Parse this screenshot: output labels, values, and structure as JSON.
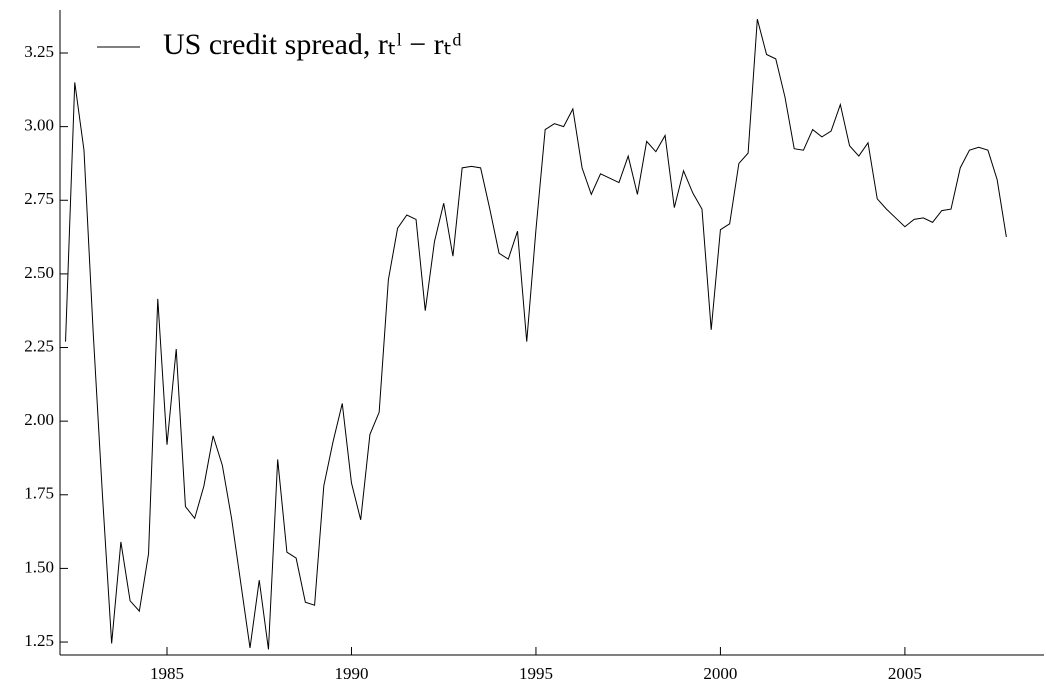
{
  "chart_data": {
    "type": "line",
    "x": [
      1982.25,
      1982.5,
      1982.75,
      1983,
      1983.25,
      1983.5,
      1983.75,
      1984,
      1984.25,
      1984.5,
      1984.75,
      1985,
      1985.25,
      1985.5,
      1985.75,
      1986,
      1986.25,
      1986.5,
      1986.75,
      1987,
      1987.25,
      1987.5,
      1987.75,
      1988,
      1988.25,
      1988.5,
      1988.75,
      1989,
      1989.25,
      1989.5,
      1989.75,
      1990,
      1990.25,
      1990.5,
      1990.75,
      1991,
      1991.25,
      1991.5,
      1991.75,
      1992,
      1992.25,
      1992.5,
      1992.75,
      1993,
      1993.25,
      1993.5,
      1993.75,
      1994,
      1994.25,
      1994.5,
      1994.75,
      1995,
      1995.25,
      1995.5,
      1995.75,
      1996,
      1996.25,
      1996.5,
      1996.75,
      1997,
      1997.25,
      1997.5,
      1997.75,
      1998,
      1998.25,
      1998.5,
      1998.75,
      1999,
      1999.25,
      1999.5,
      1999.75,
      2000,
      2000.25,
      2000.5,
      2000.75,
      2001,
      2001.25,
      2001.5,
      2001.75,
      2002,
      2002.25,
      2002.5,
      2002.75,
      2003,
      2003.25,
      2003.5,
      2003.75,
      2004,
      2004.25,
      2004.5,
      2004.75,
      2005,
      2005.25,
      2005.5,
      2005.75,
      2006,
      2006.25,
      2006.5,
      2006.75,
      2007,
      2007.25,
      2007.5,
      2007.75
    ],
    "series": [
      {
        "name": "US credit spread, rₜˡ − rₜᵈ",
        "color": "#000000",
        "values": [
          2.27,
          3.15,
          2.92,
          2.3,
          1.75,
          1.245,
          1.59,
          1.39,
          1.355,
          1.55,
          2.415,
          1.92,
          2.245,
          1.71,
          1.67,
          1.78,
          1.95,
          1.85,
          1.67,
          1.45,
          1.23,
          1.46,
          1.225,
          1.87,
          1.555,
          1.535,
          1.385,
          1.375,
          1.78,
          1.93,
          2.06,
          1.79,
          1.665,
          1.955,
          2.03,
          2.48,
          2.655,
          2.7,
          2.685,
          2.375,
          2.61,
          2.74,
          2.56,
          2.86,
          2.865,
          2.86,
          2.72,
          2.57,
          2.55,
          2.645,
          2.27,
          2.65,
          2.99,
          3.01,
          3.0,
          3.06,
          2.86,
          2.77,
          2.84,
          2.825,
          2.81,
          2.9,
          2.77,
          2.95,
          2.915,
          2.97,
          2.725,
          2.85,
          2.775,
          2.72,
          2.31,
          2.65,
          2.67,
          2.875,
          2.91,
          3.365,
          3.245,
          3.23,
          3.1,
          2.925,
          2.92,
          2.99,
          2.965,
          2.985,
          3.075,
          2.935,
          2.9,
          2.945,
          2.755,
          2.72,
          2.69,
          2.66,
          2.685,
          2.69,
          2.675,
          2.715,
          2.72,
          2.86,
          2.92,
          2.93,
          2.92,
          2.82,
          2.625
        ]
      }
    ],
    "xlim": [
      1982.1,
      2008.77
    ],
    "xticks": [
      1985,
      1990,
      1995,
      2000,
      2005
    ],
    "ylim": [
      1.206,
      3.396
    ],
    "yticks": [
      1.25,
      {
        "value": 1.5,
        "label": "1.50"
      },
      1.75,
      {
        "value": 2,
        "label": "2.00"
      },
      2.25,
      {
        "value": 2.5,
        "label": "2.50"
      },
      2.75,
      {
        "value": 3,
        "label": "3.00"
      },
      3.25
    ],
    "legend": "upper left",
    "grid": false
  }
}
